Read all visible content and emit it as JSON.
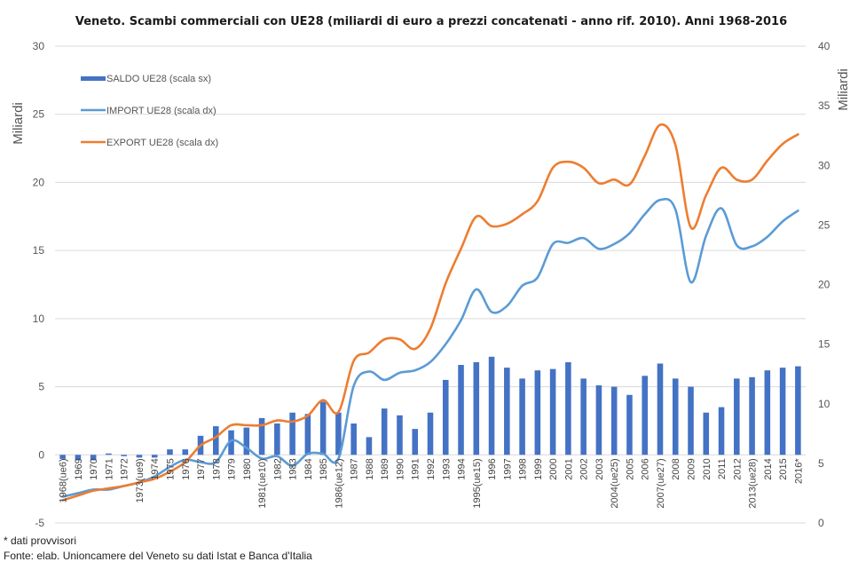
{
  "chart_data": {
    "type": "bar+line",
    "title": "Veneto. Scambi commerciali con UE28 (miliardi di euro a prezzi concatenati - anno rif. 2010). Anni 1968-2016",
    "ylabel_left": "Miliardi",
    "ylabel_right": "Miliardi",
    "ylim_left": [
      -5,
      30
    ],
    "yticks_left": [
      -5,
      0,
      5,
      10,
      15,
      20,
      25,
      30
    ],
    "ylim_right": [
      0,
      40
    ],
    "yticks_right": [
      0,
      5,
      10,
      15,
      20,
      25,
      30,
      35,
      40
    ],
    "grid": true,
    "legend_position": "top-left",
    "categories": [
      "1968(ue6)",
      "1969",
      "1970",
      "1971",
      "1972",
      "1973(ue9)",
      "1974",
      "1975",
      "1976",
      "1977",
      "1978",
      "1979",
      "1980",
      "1981(ue10)",
      "1982",
      "1983",
      "1984",
      "1985",
      "1986(ue12)",
      "1987",
      "1988",
      "1989",
      "1990",
      "1991",
      "1992",
      "1993",
      "1994",
      "1995(ue15)",
      "1996",
      "1997",
      "1998",
      "1999",
      "2000",
      "2001",
      "2002",
      "2003",
      "2004(ue25)",
      "2005",
      "2006",
      "2007(ue27)",
      "2008",
      "2009",
      "2010",
      "2011",
      "2012",
      "2013(ue28)",
      "2014",
      "2015",
      "2016*"
    ],
    "series": [
      {
        "name": "SALDO UE28 (scala sx)",
        "kind": "bar",
        "axis": "left",
        "color": "#4472c4",
        "values": [
          -0.3,
          -0.4,
          -0.4,
          0.1,
          -0.1,
          -0.2,
          -0.2,
          0.4,
          0.4,
          1.4,
          2.1,
          1.8,
          2.0,
          2.7,
          2.3,
          3.1,
          3.0,
          3.9,
          3.1,
          2.3,
          1.3,
          3.4,
          2.9,
          1.9,
          3.1,
          5.5,
          6.6,
          6.8,
          7.2,
          6.4,
          5.6,
          6.2,
          6.3,
          6.8,
          5.6,
          5.1,
          5.0,
          4.4,
          5.8,
          6.7,
          5.6,
          5.0,
          3.1,
          3.5,
          5.6,
          5.7,
          6.2,
          6.4,
          6.5
        ]
      },
      {
        "name": "IMPORT UE28 (scala dx)",
        "kind": "line",
        "axis": "right",
        "color": "#5b9bd5",
        "values": [
          2.2,
          2.5,
          2.8,
          2.8,
          3.1,
          3.4,
          3.9,
          4.7,
          5.3,
          5.1,
          5.1,
          6.9,
          6.3,
          5.4,
          5.6,
          4.8,
          5.8,
          5.8,
          5.4,
          11.5,
          12.7,
          12.0,
          12.6,
          12.8,
          13.5,
          15.0,
          17.0,
          19.6,
          17.7,
          18.2,
          19.9,
          20.6,
          23.4,
          23.5,
          23.9,
          23.0,
          23.4,
          24.3,
          25.9,
          27.1,
          26.3,
          20.2,
          24.1,
          26.4,
          23.3,
          23.2,
          24.0,
          25.3,
          26.2
        ]
      },
      {
        "name": "EXPORT UE28 (scala dx)",
        "kind": "line",
        "axis": "right",
        "color": "#ed7d31",
        "values": [
          1.9,
          2.3,
          2.7,
          2.9,
          3.1,
          3.4,
          3.7,
          4.3,
          5.1,
          6.5,
          7.2,
          8.2,
          8.2,
          8.2,
          8.6,
          8.5,
          9.0,
          10.3,
          9.3,
          13.6,
          14.3,
          15.4,
          15.4,
          14.6,
          16.3,
          20.1,
          23.0,
          25.7,
          24.9,
          25.1,
          25.9,
          27.0,
          29.8,
          30.3,
          29.8,
          28.5,
          28.8,
          28.4,
          30.8,
          33.4,
          31.7,
          24.8,
          27.5,
          29.8,
          28.8,
          28.8,
          30.4,
          31.8,
          32.6
        ]
      }
    ]
  },
  "footnotes": {
    "note": "* dati provvisori",
    "source": "Fonte: elab. Unioncamere del Veneto su dati Istat e Banca d'Italia"
  }
}
